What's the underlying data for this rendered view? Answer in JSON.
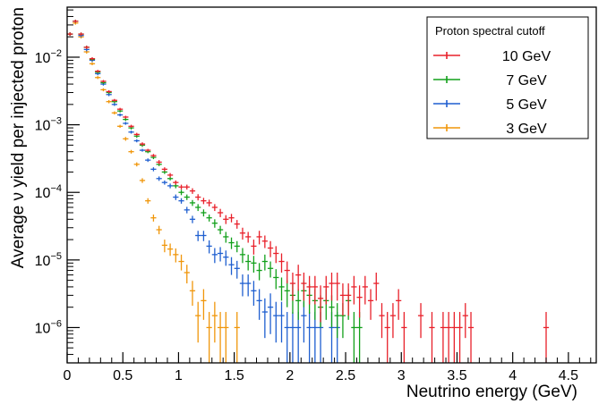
{
  "chart_data": {
    "type": "scatter",
    "xlabel": "Neutrino energy (GeV)",
    "ylabel": "Average ν yield per injected proton",
    "xlim": [
      0,
      4.75
    ],
    "ylim": [
      3e-07,
      0.055
    ],
    "yscale": "log",
    "grid": false,
    "legend_position": "top-right",
    "legend_title": "Proton spectral cutoff",
    "x_ticks": [
      {
        "value": 0,
        "label": "0"
      },
      {
        "value": 0.5,
        "label": "0.5"
      },
      {
        "value": 1,
        "label": "1"
      },
      {
        "value": 1.5,
        "label": "1.5"
      },
      {
        "value": 2,
        "label": "2"
      },
      {
        "value": 2.5,
        "label": "2.5"
      },
      {
        "value": 3,
        "label": "3"
      },
      {
        "value": 3.5,
        "label": "3.5"
      },
      {
        "value": 4,
        "label": "4"
      },
      {
        "value": 4.5,
        "label": "4.5"
      }
    ],
    "y_ticks": [
      {
        "value": 1e-06,
        "base": "10",
        "exp": "−6"
      },
      {
        "value": 1e-05,
        "base": "10",
        "exp": "−5"
      },
      {
        "value": 0.0001,
        "base": "10",
        "exp": "−4"
      },
      {
        "value": 0.001,
        "base": "10",
        "exp": "−3"
      },
      {
        "value": 0.01,
        "base": "10",
        "exp": "−2"
      }
    ],
    "series": [
      {
        "name": "10 GeV",
        "color": "#e8202a",
        "points": [
          [
            0.025,
            0.022,
            0.0013
          ],
          [
            0.075,
            0.034,
            0.0018
          ],
          [
            0.125,
            0.022,
            0.0012
          ],
          [
            0.175,
            0.014,
            0.0008
          ],
          [
            0.225,
            0.0095,
            0.0005
          ],
          [
            0.275,
            0.0062,
            0.0003
          ],
          [
            0.325,
            0.0044,
            0.0002
          ],
          [
            0.375,
            0.0031,
            0.00015
          ],
          [
            0.425,
            0.0023,
            0.00011
          ],
          [
            0.475,
            0.0017,
            8e-05
          ],
          [
            0.525,
            0.0013,
            6e-05
          ],
          [
            0.575,
            0.00095,
            5e-05
          ],
          [
            0.625,
            0.00072,
            4e-05
          ],
          [
            0.675,
            0.00052,
            3e-05
          ],
          [
            0.725,
            0.00042,
            2e-05
          ],
          [
            0.775,
            0.00035,
            2e-05
          ],
          [
            0.825,
            0.00028,
            2e-05
          ],
          [
            0.875,
            0.00022,
            1.5e-05
          ],
          [
            0.925,
            0.00018,
            1.3e-05
          ],
          [
            0.975,
            0.00014,
            1e-05
          ],
          [
            1.025,
            0.00012,
            1e-05
          ],
          [
            1.075,
            0.00012,
            1e-05
          ],
          [
            1.125,
            0.000105,
            1e-05
          ],
          [
            1.175,
            8.5e-05,
            9e-06
          ],
          [
            1.225,
            7.5e-05,
            8e-06
          ],
          [
            1.275,
            7e-05,
            8e-06
          ],
          [
            1.325,
            6e-05,
            7e-06
          ],
          [
            1.375,
            5e-05,
            7e-06
          ],
          [
            1.425,
            4e-05,
            6e-06
          ],
          [
            1.475,
            4.2e-05,
            6e-06
          ],
          [
            1.525,
            3.4e-05,
            5e-06
          ],
          [
            1.575,
            2.5e-05,
            5e-06
          ],
          [
            1.625,
            2.2e-05,
            4e-06
          ],
          [
            1.675,
            1.6e-05,
            4e-06
          ],
          [
            1.725,
            2.2e-05,
            5e-06
          ],
          [
            1.775,
            1.9e-05,
            4e-06
          ],
          [
            1.825,
            1.5e-05,
            4e-06
          ],
          [
            1.875,
            1.25e-05,
            3.5e-06
          ],
          [
            1.925,
            9.5e-06,
            3e-06
          ],
          [
            1.975,
            7e-06,
            2.5e-06
          ],
          [
            2.025,
            4.5e-06,
            2e-06
          ],
          [
            2.075,
            6e-06,
            2.5e-06
          ],
          [
            2.125,
            4.5e-06,
            2e-06
          ],
          [
            2.175,
            4e-06,
            1.8e-06
          ],
          [
            2.225,
            4e-06,
            1.8e-06
          ],
          [
            2.275,
            2.7e-06,
            1.5e-06
          ],
          [
            2.325,
            4e-06,
            1.8e-06
          ],
          [
            2.375,
            4.5e-06,
            2e-06
          ],
          [
            2.425,
            4.5e-06,
            2e-06
          ],
          [
            2.475,
            3e-06,
            1.5e-06
          ],
          [
            2.525,
            3e-06,
            1.5e-06
          ],
          [
            2.575,
            4e-06,
            1.8e-06
          ],
          [
            2.625,
            2.8e-06,
            1.4e-06
          ],
          [
            2.675,
            4e-06,
            1.8e-06
          ],
          [
            2.725,
            2.5e-06,
            1.2e-06
          ],
          [
            2.775,
            4.5e-06,
            2e-06
          ],
          [
            2.825,
            1.5e-06,
            8e-07
          ],
          [
            2.875,
            1e-06,
            7e-07
          ],
          [
            2.925,
            1.5e-06,
            8e-07
          ],
          [
            2.975,
            2.5e-06,
            1.2e-06
          ],
          [
            3.025,
            1e-06,
            7e-07
          ],
          [
            3.175,
            1.5e-06,
            8e-07
          ],
          [
            3.275,
            1e-06,
            7e-07
          ],
          [
            3.375,
            1e-06,
            7e-07
          ],
          [
            3.425,
            1e-06,
            7e-07
          ],
          [
            3.475,
            1e-06,
            7e-07
          ],
          [
            3.525,
            1e-06,
            7e-07
          ],
          [
            3.575,
            1.5e-06,
            8e-07
          ],
          [
            3.625,
            1e-06,
            7e-07
          ],
          [
            4.3,
            1e-06,
            7e-07
          ]
        ]
      },
      {
        "name": "7 GeV",
        "color": "#12a01a",
        "points": [
          [
            0.025,
            0.022,
            0.0013
          ],
          [
            0.075,
            0.034,
            0.0018
          ],
          [
            0.125,
            0.022,
            0.0012
          ],
          [
            0.175,
            0.014,
            0.0008
          ],
          [
            0.225,
            0.0093,
            0.0005
          ],
          [
            0.275,
            0.006,
            0.0003
          ],
          [
            0.325,
            0.0042,
            0.0002
          ],
          [
            0.375,
            0.003,
            0.00015
          ],
          [
            0.425,
            0.0022,
            0.00011
          ],
          [
            0.475,
            0.0016,
            8e-05
          ],
          [
            0.525,
            0.0012,
            6e-05
          ],
          [
            0.575,
            0.0009,
            5e-05
          ],
          [
            0.625,
            0.00068,
            4e-05
          ],
          [
            0.675,
            0.0005,
            3e-05
          ],
          [
            0.725,
            0.0004,
            2e-05
          ],
          [
            0.775,
            0.00033,
            2e-05
          ],
          [
            0.825,
            0.00026,
            1.5e-05
          ],
          [
            0.875,
            0.0002,
            1.3e-05
          ],
          [
            0.925,
            0.00016,
            1e-05
          ],
          [
            0.975,
            0.000125,
            1e-05
          ],
          [
            1.025,
            0.0001,
            9e-06
          ],
          [
            1.075,
            8.5e-05,
            8e-06
          ],
          [
            1.125,
            7e-05,
            7e-06
          ],
          [
            1.175,
            6e-05,
            7e-06
          ],
          [
            1.225,
            5e-05,
            6e-06
          ],
          [
            1.275,
            4.2e-05,
            5e-06
          ],
          [
            1.325,
            3.5e-05,
            5e-06
          ],
          [
            1.375,
            2.8e-05,
            4e-06
          ],
          [
            1.425,
            2.2e-05,
            4e-06
          ],
          [
            1.475,
            1.8e-05,
            3.5e-06
          ],
          [
            1.525,
            1.6e-05,
            3e-06
          ],
          [
            1.575,
            1.2e-05,
            3e-06
          ],
          [
            1.625,
            9.5e-06,
            2.5e-06
          ],
          [
            1.675,
            9e-06,
            2.5e-06
          ],
          [
            1.725,
            7e-06,
            2e-06
          ],
          [
            1.775,
            9.5e-06,
            2.5e-06
          ],
          [
            1.825,
            7.5e-06,
            2e-06
          ],
          [
            1.875,
            5.5e-06,
            1.8e-06
          ],
          [
            1.925,
            4e-06,
            1.5e-06
          ],
          [
            1.975,
            3.5e-06,
            1.5e-06
          ],
          [
            2.025,
            3e-06,
            1.4e-06
          ],
          [
            2.075,
            2.5e-06,
            1.2e-06
          ],
          [
            2.125,
            3.5e-06,
            1.5e-06
          ],
          [
            2.175,
            3e-06,
            1.4e-06
          ],
          [
            2.225,
            2.5e-06,
            1.2e-06
          ],
          [
            2.275,
            2e-06,
            1e-06
          ],
          [
            2.325,
            2.5e-06,
            1.2e-06
          ],
          [
            2.375,
            2e-06,
            1e-06
          ],
          [
            2.425,
            1.5e-06,
            8e-07
          ],
          [
            2.475,
            1.5e-06,
            8e-07
          ],
          [
            2.525,
            2.5e-06,
            1.2e-06
          ],
          [
            2.575,
            1e-06,
            7e-07
          ],
          [
            2.625,
            1e-06,
            7e-07
          ]
        ]
      },
      {
        "name": "5 GeV",
        "color": "#1f5fd0",
        "points": [
          [
            0.025,
            0.022,
            0.0013
          ],
          [
            0.075,
            0.034,
            0.0018
          ],
          [
            0.125,
            0.021,
            0.0012
          ],
          [
            0.175,
            0.013,
            0.0008
          ],
          [
            0.225,
            0.009,
            0.0005
          ],
          [
            0.275,
            0.0057,
            0.0003
          ],
          [
            0.325,
            0.004,
            0.0002
          ],
          [
            0.375,
            0.0028,
            0.00015
          ],
          [
            0.425,
            0.002,
            0.0001
          ],
          [
            0.475,
            0.0014,
            7e-05
          ],
          [
            0.525,
            0.00105,
            5e-05
          ],
          [
            0.575,
            0.00078,
            4e-05
          ],
          [
            0.625,
            0.00058,
            3e-05
          ],
          [
            0.675,
            0.00042,
            2e-05
          ],
          [
            0.725,
            0.0003,
            1.8e-05
          ],
          [
            0.775,
            0.00022,
            1.5e-05
          ],
          [
            0.825,
            0.00016,
            1.2e-05
          ],
          [
            0.875,
            0.00014,
            1e-05
          ],
          [
            0.925,
            0.000125,
            1e-05
          ],
          [
            0.975,
            8.5e-05,
            8e-06
          ],
          [
            1.025,
            7.5e-05,
            7e-06
          ],
          [
            1.075,
            5.5e-05,
            6e-06
          ],
          [
            1.125,
            4e-05,
            5e-06
          ],
          [
            1.175,
            2.3e-05,
            4e-06
          ],
          [
            1.225,
            2.3e-05,
            4e-06
          ],
          [
            1.275,
            1.6e-05,
            3.5e-06
          ],
          [
            1.325,
            1.2e-05,
            3e-06
          ],
          [
            1.375,
            1.25e-05,
            3e-06
          ],
          [
            1.425,
            1.1e-05,
            2.8e-06
          ],
          [
            1.475,
            8.5e-06,
            2.5e-06
          ],
          [
            1.525,
            7.5e-06,
            2.2e-06
          ],
          [
            1.575,
            4.5e-06,
            1.6e-06
          ],
          [
            1.625,
            4.5e-06,
            1.6e-06
          ],
          [
            1.675,
            3.5e-06,
            1.4e-06
          ],
          [
            1.725,
            2.5e-06,
            1.2e-06
          ],
          [
            1.775,
            1.7e-06,
            1e-06
          ],
          [
            1.825,
            2e-06,
            1.2e-06
          ],
          [
            1.875,
            1.5e-06,
            9e-07
          ],
          [
            1.925,
            1.5e-06,
            9e-07
          ],
          [
            1.975,
            1e-06,
            7e-07
          ],
          [
            2.025,
            1e-06,
            7e-07
          ],
          [
            2.075,
            1e-06,
            7e-07
          ],
          [
            2.125,
            1.5e-06,
            9e-07
          ],
          [
            2.175,
            1e-06,
            7e-07
          ],
          [
            2.225,
            1e-06,
            7e-07
          ],
          [
            2.275,
            1e-06,
            7e-07
          ],
          [
            2.375,
            1e-06,
            7e-07
          ],
          [
            2.425,
            1e-06,
            7e-07
          ]
        ]
      },
      {
        "name": "3 GeV",
        "color": "#f0960a",
        "points": [
          [
            0.025,
            0.022,
            0.0013
          ],
          [
            0.075,
            0.032,
            0.0017
          ],
          [
            0.125,
            0.02,
            0.0011
          ],
          [
            0.175,
            0.012,
            0.0007
          ],
          [
            0.225,
            0.008,
            0.0004
          ],
          [
            0.275,
            0.005,
            0.00025
          ],
          [
            0.325,
            0.0033,
            0.00017
          ],
          [
            0.375,
            0.0022,
            0.00012
          ],
          [
            0.425,
            0.0015,
            8e-05
          ],
          [
            0.475,
            0.00095,
            5e-05
          ],
          [
            0.525,
            0.00062,
            4e-05
          ],
          [
            0.575,
            0.0004,
            2.5e-05
          ],
          [
            0.625,
            0.00026,
            1.8e-05
          ],
          [
            0.675,
            0.00015,
            1.2e-05
          ],
          [
            0.725,
            7.5e-05,
            7e-06
          ],
          [
            0.775,
            4.2e-05,
            5e-06
          ],
          [
            0.825,
            2.8e-05,
            4e-06
          ],
          [
            0.875,
            1.65e-05,
            3.5e-06
          ],
          [
            0.925,
            1.45e-05,
            3e-06
          ],
          [
            0.975,
            1.2e-05,
            2.8e-06
          ],
          [
            1.025,
            9.5e-06,
            2.5e-06
          ],
          [
            1.075,
            6.5e-06,
            2e-06
          ],
          [
            1.125,
            3.5e-06,
            1.4e-06
          ],
          [
            1.175,
            1.5e-06,
            9e-07
          ],
          [
            1.225,
            2.5e-06,
            1.2e-06
          ],
          [
            1.275,
            1e-06,
            7e-07
          ],
          [
            1.325,
            1.5e-06,
            9e-07
          ],
          [
            1.375,
            1e-06,
            7e-07
          ],
          [
            1.425,
            1e-06,
            7e-07
          ],
          [
            1.525,
            1e-06,
            7e-07
          ]
        ]
      }
    ]
  }
}
